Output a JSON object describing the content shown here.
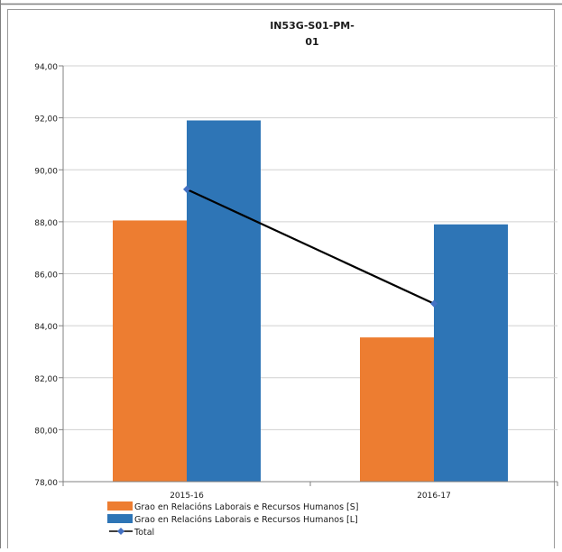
{
  "chart_data": {
    "type": "bar",
    "title_line1": "IN53G-S01-PM-",
    "title_line2": "01",
    "categories": [
      "2015-16",
      "2016-17"
    ],
    "series": [
      {
        "name": "Grao en Relacións Laborais e Recursos Humanos [S]",
        "kind": "bar",
        "color": "#ED7D31",
        "values": [
          88.05,
          83.55
        ]
      },
      {
        "name": "Grao en Relacións Laborais e Recursos Humanos [L]",
        "kind": "bar",
        "color": "#2E75B6",
        "values": [
          91.9,
          87.9
        ]
      },
      {
        "name": "Total",
        "kind": "line",
        "color": "#000000",
        "marker_color": "#4472C4",
        "values": [
          89.25,
          84.85
        ]
      }
    ],
    "ylim": [
      78,
      94
    ],
    "yticks": [
      "94,00",
      "92,00",
      "90,00",
      "88,00",
      "86,00",
      "84,00",
      "82,00",
      "80,00",
      "78,00"
    ],
    "grid": true,
    "legend_position": "bottom"
  }
}
